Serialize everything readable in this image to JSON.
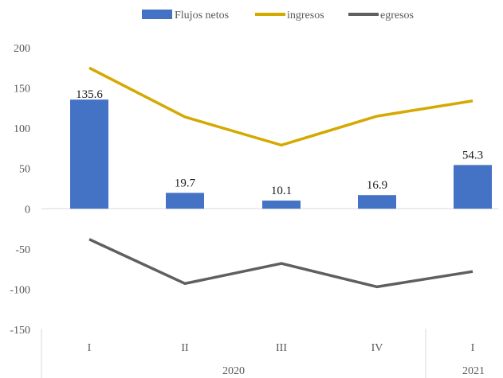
{
  "chart_data": {
    "type": "bar",
    "categories": [
      "I",
      "II",
      "III",
      "IV",
      "I"
    ],
    "groups": [
      {
        "label": "2020",
        "span": 4
      },
      {
        "label": "2021",
        "span": 1
      }
    ],
    "series": [
      {
        "name": "Flujos netos",
        "kind": "bar",
        "color": "#4472C4",
        "values": [
          135.6,
          19.7,
          10.1,
          16.9,
          54.3
        ],
        "data_labels": [
          "135.6",
          "19.7",
          "10.1",
          "16.9",
          "54.3"
        ]
      },
      {
        "name": "ingresos",
        "kind": "line",
        "color": "#D4A900",
        "values": [
          175,
          114,
          79,
          115,
          134
        ]
      },
      {
        "name": "egresos",
        "kind": "line",
        "color": "#5F5F5F",
        "values": [
          -38,
          -93,
          -68,
          -97,
          -78
        ]
      }
    ],
    "ylim": [
      -150,
      200
    ],
    "yticks": [
      "200",
      "150",
      "100",
      "50",
      "0",
      "-50",
      "-100",
      "-150"
    ],
    "ytick_values": [
      200,
      150,
      100,
      50,
      0,
      -50,
      -100,
      -150
    ],
    "grid": false,
    "legend_position": "top"
  }
}
